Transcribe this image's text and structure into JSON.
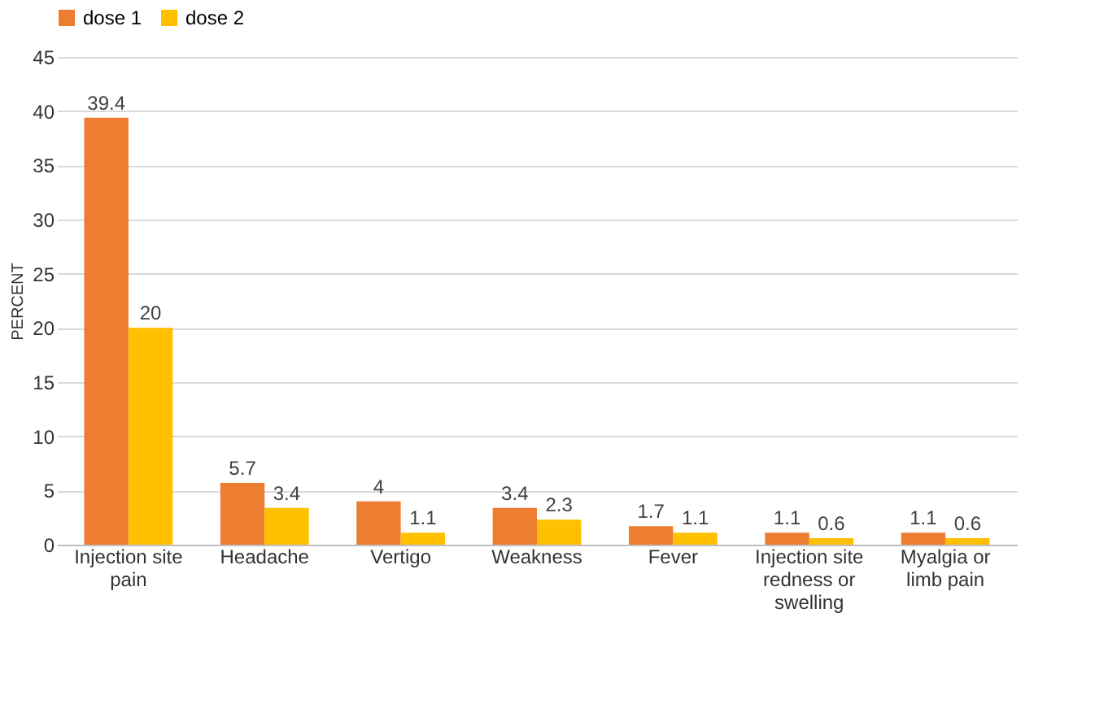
{
  "chart_data": {
    "type": "bar",
    "ylabel": "PERCENT",
    "categories": [
      "Injection site pain",
      "Headache",
      "Vertigo",
      "Weakness",
      "Fever",
      "Injection site redness or swelling",
      "Myalgia or limb pain"
    ],
    "series": [
      {
        "name": "dose 1",
        "color": "#ed7d31",
        "values": [
          39.4,
          5.7,
          4,
          3.4,
          1.7,
          1.1,
          1.1
        ]
      },
      {
        "name": "dose 2",
        "color": "#ffc000",
        "values": [
          20,
          3.4,
          1.1,
          2.3,
          1.1,
          0.6,
          0.6
        ]
      }
    ],
    "ylim": [
      0,
      45
    ],
    "yticks": [
      0,
      5,
      10,
      15,
      20,
      25,
      30,
      35,
      40,
      45
    ],
    "grid": "y",
    "legend": "top",
    "data_labels": true
  }
}
